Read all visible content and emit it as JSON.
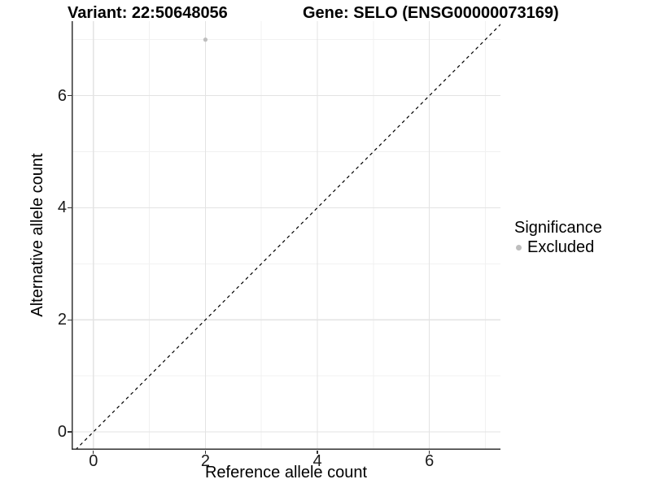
{
  "chart_data": {
    "type": "scatter",
    "title_left": "Variant: 22:50648056",
    "title_right": "Gene: SELO (ENSG00000073169)",
    "xlabel": "Reference allele count",
    "ylabel": "Alternative allele count",
    "xlim": [
      -0.39,
      7.27
    ],
    "ylim": [
      -0.32,
      7.33
    ],
    "x_ticks": [
      0,
      2,
      4,
      6
    ],
    "y_ticks": [
      0,
      2,
      4,
      6
    ],
    "x_minor_ticks": [
      1,
      3,
      5,
      7
    ],
    "y_minor_ticks": [
      1,
      3,
      5,
      7
    ],
    "points": [
      {
        "x": 2,
        "y": 7,
        "significance": "Excluded"
      }
    ],
    "point_color": "#bebebe",
    "point_radius": 2.6,
    "identity_line": {
      "style": "dashed",
      "color": "#000000"
    },
    "legend": {
      "title": "Significance",
      "position": "right",
      "entries": [
        {
          "label": "Excluded",
          "color": "#bebebe"
        }
      ]
    },
    "grid": {
      "major_color": "#e3e3e3",
      "minor_color": "#f1f1f1"
    },
    "axis_color": "#333333"
  }
}
